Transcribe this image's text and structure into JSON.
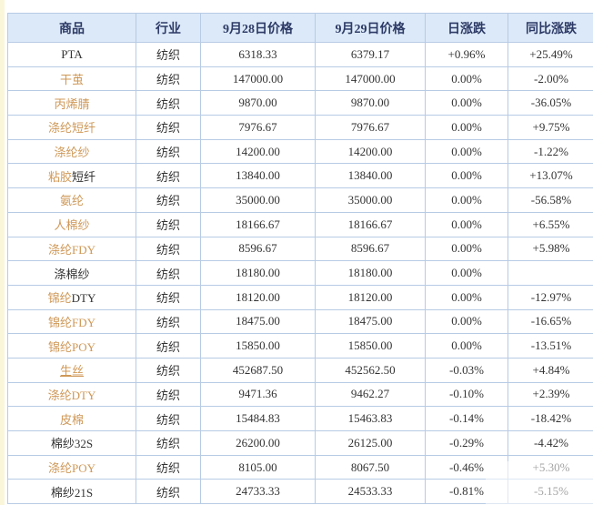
{
  "colors": {
    "header_bg": "#dce9f8",
    "header_text": "#2d3a66",
    "border": "#b7cbe5",
    "link_orange": "#cf9857",
    "up_red": "#cc3333",
    "down_green": "#2e8b2e",
    "flat_dark": "#444444"
  },
  "table": {
    "headers": [
      "商品",
      "行业",
      "9月28日价格",
      "9月29日价格",
      "日涨跌",
      "同比涨跌"
    ],
    "rows": [
      {
        "name_link": "",
        "name_rest": "PTA",
        "underline": false,
        "industry": "纺织",
        "price_0928": "6318.33",
        "price_0929": "6379.17",
        "day_change": "+0.96%",
        "day_trend": "up",
        "yoy_change": "+25.49%",
        "yoy_trend": "up"
      },
      {
        "name_link": "干茧",
        "name_rest": "",
        "underline": false,
        "industry": "纺织",
        "price_0928": "147000.00",
        "price_0929": "147000.00",
        "day_change": "0.00%",
        "day_trend": "flat",
        "yoy_change": "-2.00%",
        "yoy_trend": "down"
      },
      {
        "name_link": "丙烯腈",
        "name_rest": "",
        "underline": false,
        "industry": "纺织",
        "price_0928": "9870.00",
        "price_0929": "9870.00",
        "day_change": "0.00%",
        "day_trend": "flat",
        "yoy_change": "-36.05%",
        "yoy_trend": "down"
      },
      {
        "name_link": "涤纶短纤",
        "name_rest": "",
        "underline": false,
        "industry": "纺织",
        "price_0928": "7976.67",
        "price_0929": "7976.67",
        "day_change": "0.00%",
        "day_trend": "flat",
        "yoy_change": "+9.75%",
        "yoy_trend": "up"
      },
      {
        "name_link": "涤纶纱",
        "name_rest": "",
        "underline": false,
        "industry": "纺织",
        "price_0928": "14200.00",
        "price_0929": "14200.00",
        "day_change": "0.00%",
        "day_trend": "flat",
        "yoy_change": "-1.22%",
        "yoy_trend": "down"
      },
      {
        "name_link": "粘胶",
        "name_rest": "短纤",
        "underline": false,
        "industry": "纺织",
        "price_0928": "13840.00",
        "price_0929": "13840.00",
        "day_change": "0.00%",
        "day_trend": "flat",
        "yoy_change": "+13.07%",
        "yoy_trend": "up"
      },
      {
        "name_link": "氨纶",
        "name_rest": "",
        "underline": false,
        "industry": "纺织",
        "price_0928": "35000.00",
        "price_0929": "35000.00",
        "day_change": "0.00%",
        "day_trend": "flat",
        "yoy_change": "-56.58%",
        "yoy_trend": "down"
      },
      {
        "name_link": "人棉纱",
        "name_rest": "",
        "underline": false,
        "industry": "纺织",
        "price_0928": "18166.67",
        "price_0929": "18166.67",
        "day_change": "0.00%",
        "day_trend": "flat",
        "yoy_change": "+6.55%",
        "yoy_trend": "up"
      },
      {
        "name_link": "涤纶FDY",
        "name_rest": "",
        "underline": false,
        "industry": "纺织",
        "price_0928": "8596.67",
        "price_0929": "8596.67",
        "day_change": "0.00%",
        "day_trend": "flat",
        "yoy_change": "+5.98%",
        "yoy_trend": "up"
      },
      {
        "name_link": "",
        "name_rest": "涤棉纱",
        "underline": false,
        "industry": "纺织",
        "price_0928": "18180.00",
        "price_0929": "18180.00",
        "day_change": "0.00%",
        "day_trend": "flat",
        "yoy_change": "",
        "yoy_trend": "none"
      },
      {
        "name_link": "锦纶",
        "name_rest": "DTY",
        "underline": false,
        "industry": "纺织",
        "price_0928": "18120.00",
        "price_0929": "18120.00",
        "day_change": "0.00%",
        "day_trend": "flat",
        "yoy_change": "-12.97%",
        "yoy_trend": "down"
      },
      {
        "name_link": "锦纶FDY",
        "name_rest": "",
        "underline": false,
        "industry": "纺织",
        "price_0928": "18475.00",
        "price_0929": "18475.00",
        "day_change": "0.00%",
        "day_trend": "flat",
        "yoy_change": "-16.65%",
        "yoy_trend": "down"
      },
      {
        "name_link": "锦纶POY",
        "name_rest": "",
        "underline": false,
        "industry": "纺织",
        "price_0928": "15850.00",
        "price_0929": "15850.00",
        "day_change": "0.00%",
        "day_trend": "flat",
        "yoy_change": "-13.51%",
        "yoy_trend": "down"
      },
      {
        "name_link": "生丝",
        "name_rest": "",
        "underline": true,
        "industry": "纺织",
        "price_0928": "452687.50",
        "price_0929": "452562.50",
        "day_change": "-0.03%",
        "day_trend": "down",
        "yoy_change": "+4.84%",
        "yoy_trend": "up"
      },
      {
        "name_link": "涤纶DTY",
        "name_rest": "",
        "underline": false,
        "industry": "纺织",
        "price_0928": "9471.36",
        "price_0929": "9462.27",
        "day_change": "-0.10%",
        "day_trend": "down",
        "yoy_change": "+2.39%",
        "yoy_trend": "up"
      },
      {
        "name_link": "皮棉",
        "name_rest": "",
        "underline": false,
        "industry": "纺织",
        "price_0928": "15484.83",
        "price_0929": "15463.83",
        "day_change": "-0.14%",
        "day_trend": "down",
        "yoy_change": "-18.42%",
        "yoy_trend": "down"
      },
      {
        "name_link": "",
        "name_rest": "棉纱32S",
        "underline": false,
        "industry": "纺织",
        "price_0928": "26200.00",
        "price_0929": "26125.00",
        "day_change": "-0.29%",
        "day_trend": "down",
        "yoy_change": "-4.42%",
        "yoy_trend": "down"
      },
      {
        "name_link": "涤纶POY",
        "name_rest": "",
        "underline": false,
        "industry": "纺织",
        "price_0928": "8105.00",
        "price_0929": "8067.50",
        "day_change": "-0.46%",
        "day_trend": "down",
        "yoy_change": "+5.30%",
        "yoy_trend": "up"
      },
      {
        "name_link": "",
        "name_rest": "棉纱21S",
        "underline": false,
        "industry": "纺织",
        "price_0928": "24733.33",
        "price_0929": "24533.33",
        "day_change": "-0.81%",
        "day_trend": "down",
        "yoy_change": "-5.15%",
        "yoy_trend": "down"
      }
    ]
  }
}
